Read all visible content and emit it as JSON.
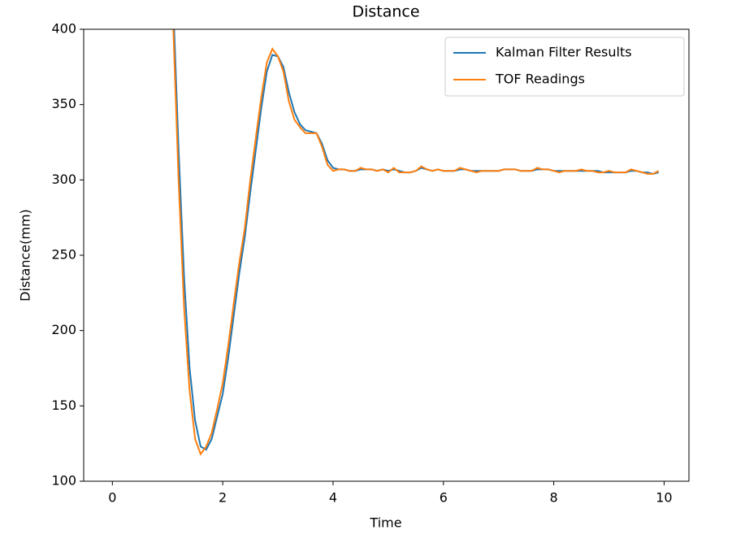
{
  "chart_data": {
    "type": "line",
    "title": "Distance",
    "x_label": "Time",
    "y_label": "Distance(mm)",
    "x": [
      1.0,
      1.1,
      1.2,
      1.3,
      1.4,
      1.5,
      1.6,
      1.7,
      1.8,
      1.9,
      2.0,
      2.1,
      2.2,
      2.3,
      2.4,
      2.5,
      2.6,
      2.7,
      2.8,
      2.9,
      3.0,
      3.1,
      3.2,
      3.3,
      3.4,
      3.5,
      3.6,
      3.7,
      3.8,
      3.9,
      4.0,
      4.1,
      4.2,
      4.3,
      4.4,
      4.5,
      4.6,
      4.7,
      4.8,
      4.9,
      5.0,
      5.1,
      5.2,
      5.3,
      5.4,
      5.5,
      5.6,
      5.7,
      5.8,
      5.9,
      6.0,
      6.1,
      6.2,
      6.3,
      6.4,
      6.5,
      6.6,
      6.7,
      6.8,
      6.9,
      7.0,
      7.1,
      7.2,
      7.3,
      7.4,
      7.5,
      7.6,
      7.7,
      7.8,
      7.9,
      8.0,
      8.1,
      8.2,
      8.3,
      8.4,
      8.5,
      8.6,
      8.7,
      8.8,
      8.9,
      9.0,
      9.1,
      9.2,
      9.3,
      9.4,
      9.5,
      9.6,
      9.7,
      9.8,
      9.9
    ],
    "series": [
      {
        "name": "Kalman Filter Results",
        "color": "#1f77b4",
        "values": [
          480,
          420,
          320,
          235,
          175,
          140,
          123,
          121,
          128,
          143,
          158,
          182,
          210,
          238,
          262,
          292,
          320,
          348,
          372,
          383,
          382,
          375,
          358,
          345,
          337,
          333,
          332,
          331,
          324,
          313,
          308,
          307,
          307,
          306,
          306,
          307,
          307,
          307,
          306,
          307,
          306,
          307,
          306,
          305,
          305,
          306,
          308,
          307,
          306,
          307,
          306,
          306,
          306,
          307,
          307,
          306,
          306,
          306,
          306,
          306,
          306,
          307,
          307,
          307,
          306,
          306,
          306,
          307,
          307,
          307,
          306,
          306,
          306,
          306,
          306,
          306,
          306,
          306,
          306,
          305,
          305,
          305,
          305,
          305,
          306,
          306,
          305,
          305,
          304,
          305
        ]
      },
      {
        "name": "TOF Readings",
        "color": "#ff7f0e",
        "values": [
          470,
          405,
          300,
          215,
          160,
          128,
          118,
          123,
          132,
          148,
          165,
          190,
          218,
          245,
          268,
          300,
          328,
          355,
          378,
          387,
          382,
          372,
          352,
          340,
          335,
          331,
          331,
          331,
          322,
          310,
          306,
          307,
          307,
          306,
          306,
          308,
          307,
          307,
          306,
          307,
          305,
          308,
          305,
          305,
          305,
          306,
          309,
          307,
          306,
          307,
          306,
          306,
          306,
          308,
          307,
          306,
          305,
          306,
          306,
          306,
          306,
          307,
          307,
          307,
          306,
          306,
          306,
          308,
          307,
          307,
          306,
          305,
          306,
          306,
          306,
          307,
          306,
          306,
          305,
          305,
          306,
          305,
          305,
          305,
          307,
          306,
          305,
          304,
          304,
          306
        ]
      }
    ],
    "xlim": [
      -0.52,
      10.45
    ],
    "ylim": [
      100,
      400
    ],
    "xticks": [
      0,
      2,
      4,
      6,
      8,
      10
    ],
    "yticks": [
      100,
      150,
      200,
      250,
      300,
      350,
      400
    ],
    "legend": "upper right"
  }
}
